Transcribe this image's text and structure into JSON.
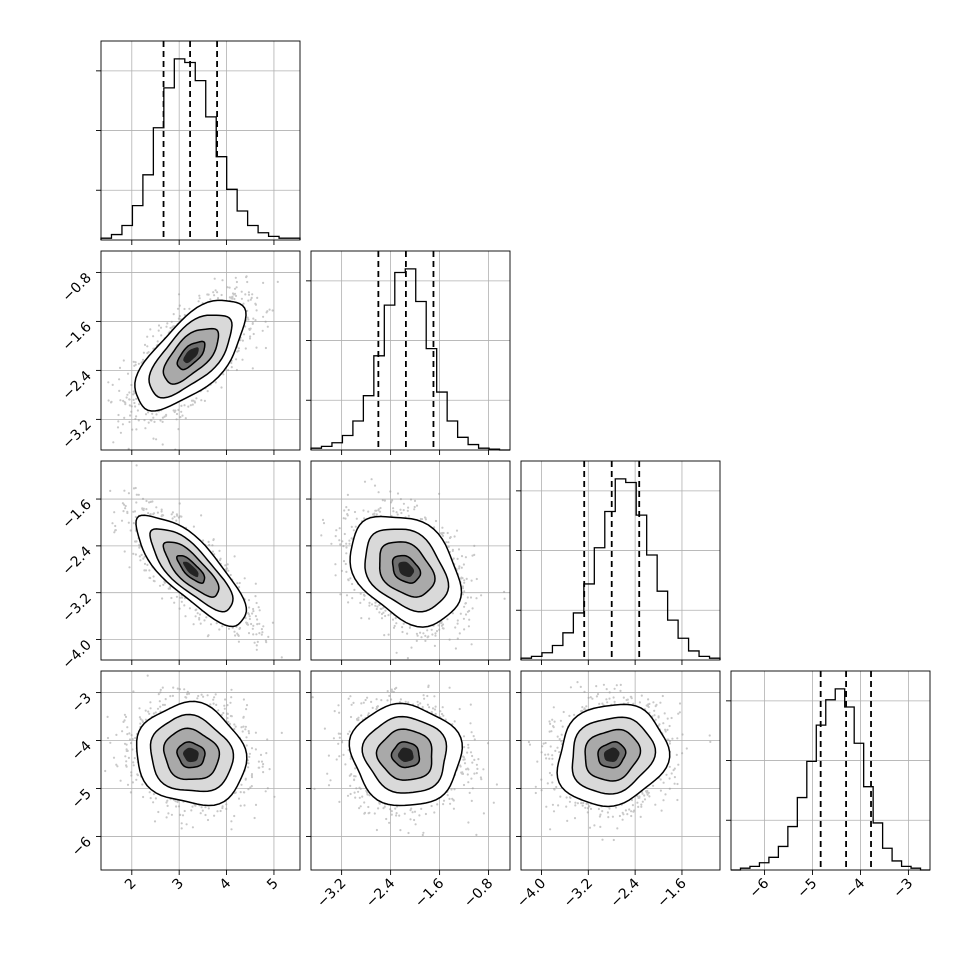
{
  "chart_data": {
    "type": "corner",
    "grid": true,
    "parameters": [
      {
        "mean": 3.25,
        "sd": 0.58,
        "range": [
          1.35,
          5.55
        ],
        "ticks": [
          2,
          3,
          4,
          5
        ],
        "tick_labels": [
          "2",
          "3",
          "4",
          "5"
        ],
        "quantiles": [
          2.67,
          3.23,
          3.8
        ],
        "histogram_counts": [
          0.01,
          0.03,
          0.08,
          0.19,
          0.36,
          0.62,
          0.84,
          1.0,
          0.98,
          0.88,
          0.68,
          0.46,
          0.28,
          0.16,
          0.08,
          0.04,
          0.02,
          0.01,
          0.01
        ]
      },
      {
        "mean": -2.15,
        "sd": 0.45,
        "range": [
          -3.7,
          -0.45
        ],
        "ticks": [
          -3.2,
          -2.4,
          -1.6,
          -0.8
        ],
        "tick_labels": [
          "−3.2",
          "−2.4",
          "−1.6",
          "−0.8"
        ],
        "quantiles": [
          -2.6,
          -2.15,
          -1.7
        ],
        "histogram_counts": [
          0.01,
          0.02,
          0.04,
          0.08,
          0.16,
          0.3,
          0.52,
          0.8,
          0.98,
          1.0,
          0.82,
          0.56,
          0.32,
          0.16,
          0.07,
          0.03,
          0.01,
          0.005,
          0.0
        ]
      },
      {
        "mean": -2.8,
        "sd": 0.47,
        "range": [
          -4.35,
          -0.95
        ],
        "ticks": [
          -4.0,
          -3.2,
          -2.4,
          -1.6
        ],
        "tick_labels": [
          "−4.0",
          "−3.2",
          "−2.4",
          "−1.6"
        ],
        "y_ticks": [
          -4.0,
          -3.2,
          -2.4,
          -1.6
        ],
        "y_tick_labels": [
          "−4.0",
          "−3.2",
          "−2.4",
          "−1.6"
        ],
        "quantiles": [
          -3.27,
          -2.8,
          -2.33
        ],
        "histogram_counts": [
          0.01,
          0.02,
          0.04,
          0.08,
          0.15,
          0.26,
          0.42,
          0.62,
          0.82,
          1.0,
          0.98,
          0.8,
          0.58,
          0.38,
          0.22,
          0.12,
          0.05,
          0.02,
          0.01
        ]
      },
      {
        "mean": -4.3,
        "sd": 0.53,
        "range": [
          -6.7,
          -2.55
        ],
        "ticks": [
          -6,
          -5,
          -4,
          -3
        ],
        "tick_labels": [
          "−6",
          "−5",
          "−4",
          "−3"
        ],
        "quantiles": [
          -4.83,
          -4.3,
          -3.78
        ],
        "histogram_counts": [
          0.0,
          0.01,
          0.02,
          0.04,
          0.07,
          0.13,
          0.24,
          0.4,
          0.6,
          0.8,
          0.94,
          1.0,
          0.9,
          0.7,
          0.46,
          0.26,
          0.12,
          0.05,
          0.02,
          0.01,
          0.0
        ]
      }
    ],
    "correlations": {
      "1-0": 0.65,
      "2-0": -0.78,
      "2-1": -0.32,
      "3-0": -0.1,
      "3-1": -0.05,
      "3-2": 0.12
    },
    "contour_levels_sigma": [
      0.5,
      1.0,
      1.5,
      2.0
    ]
  }
}
